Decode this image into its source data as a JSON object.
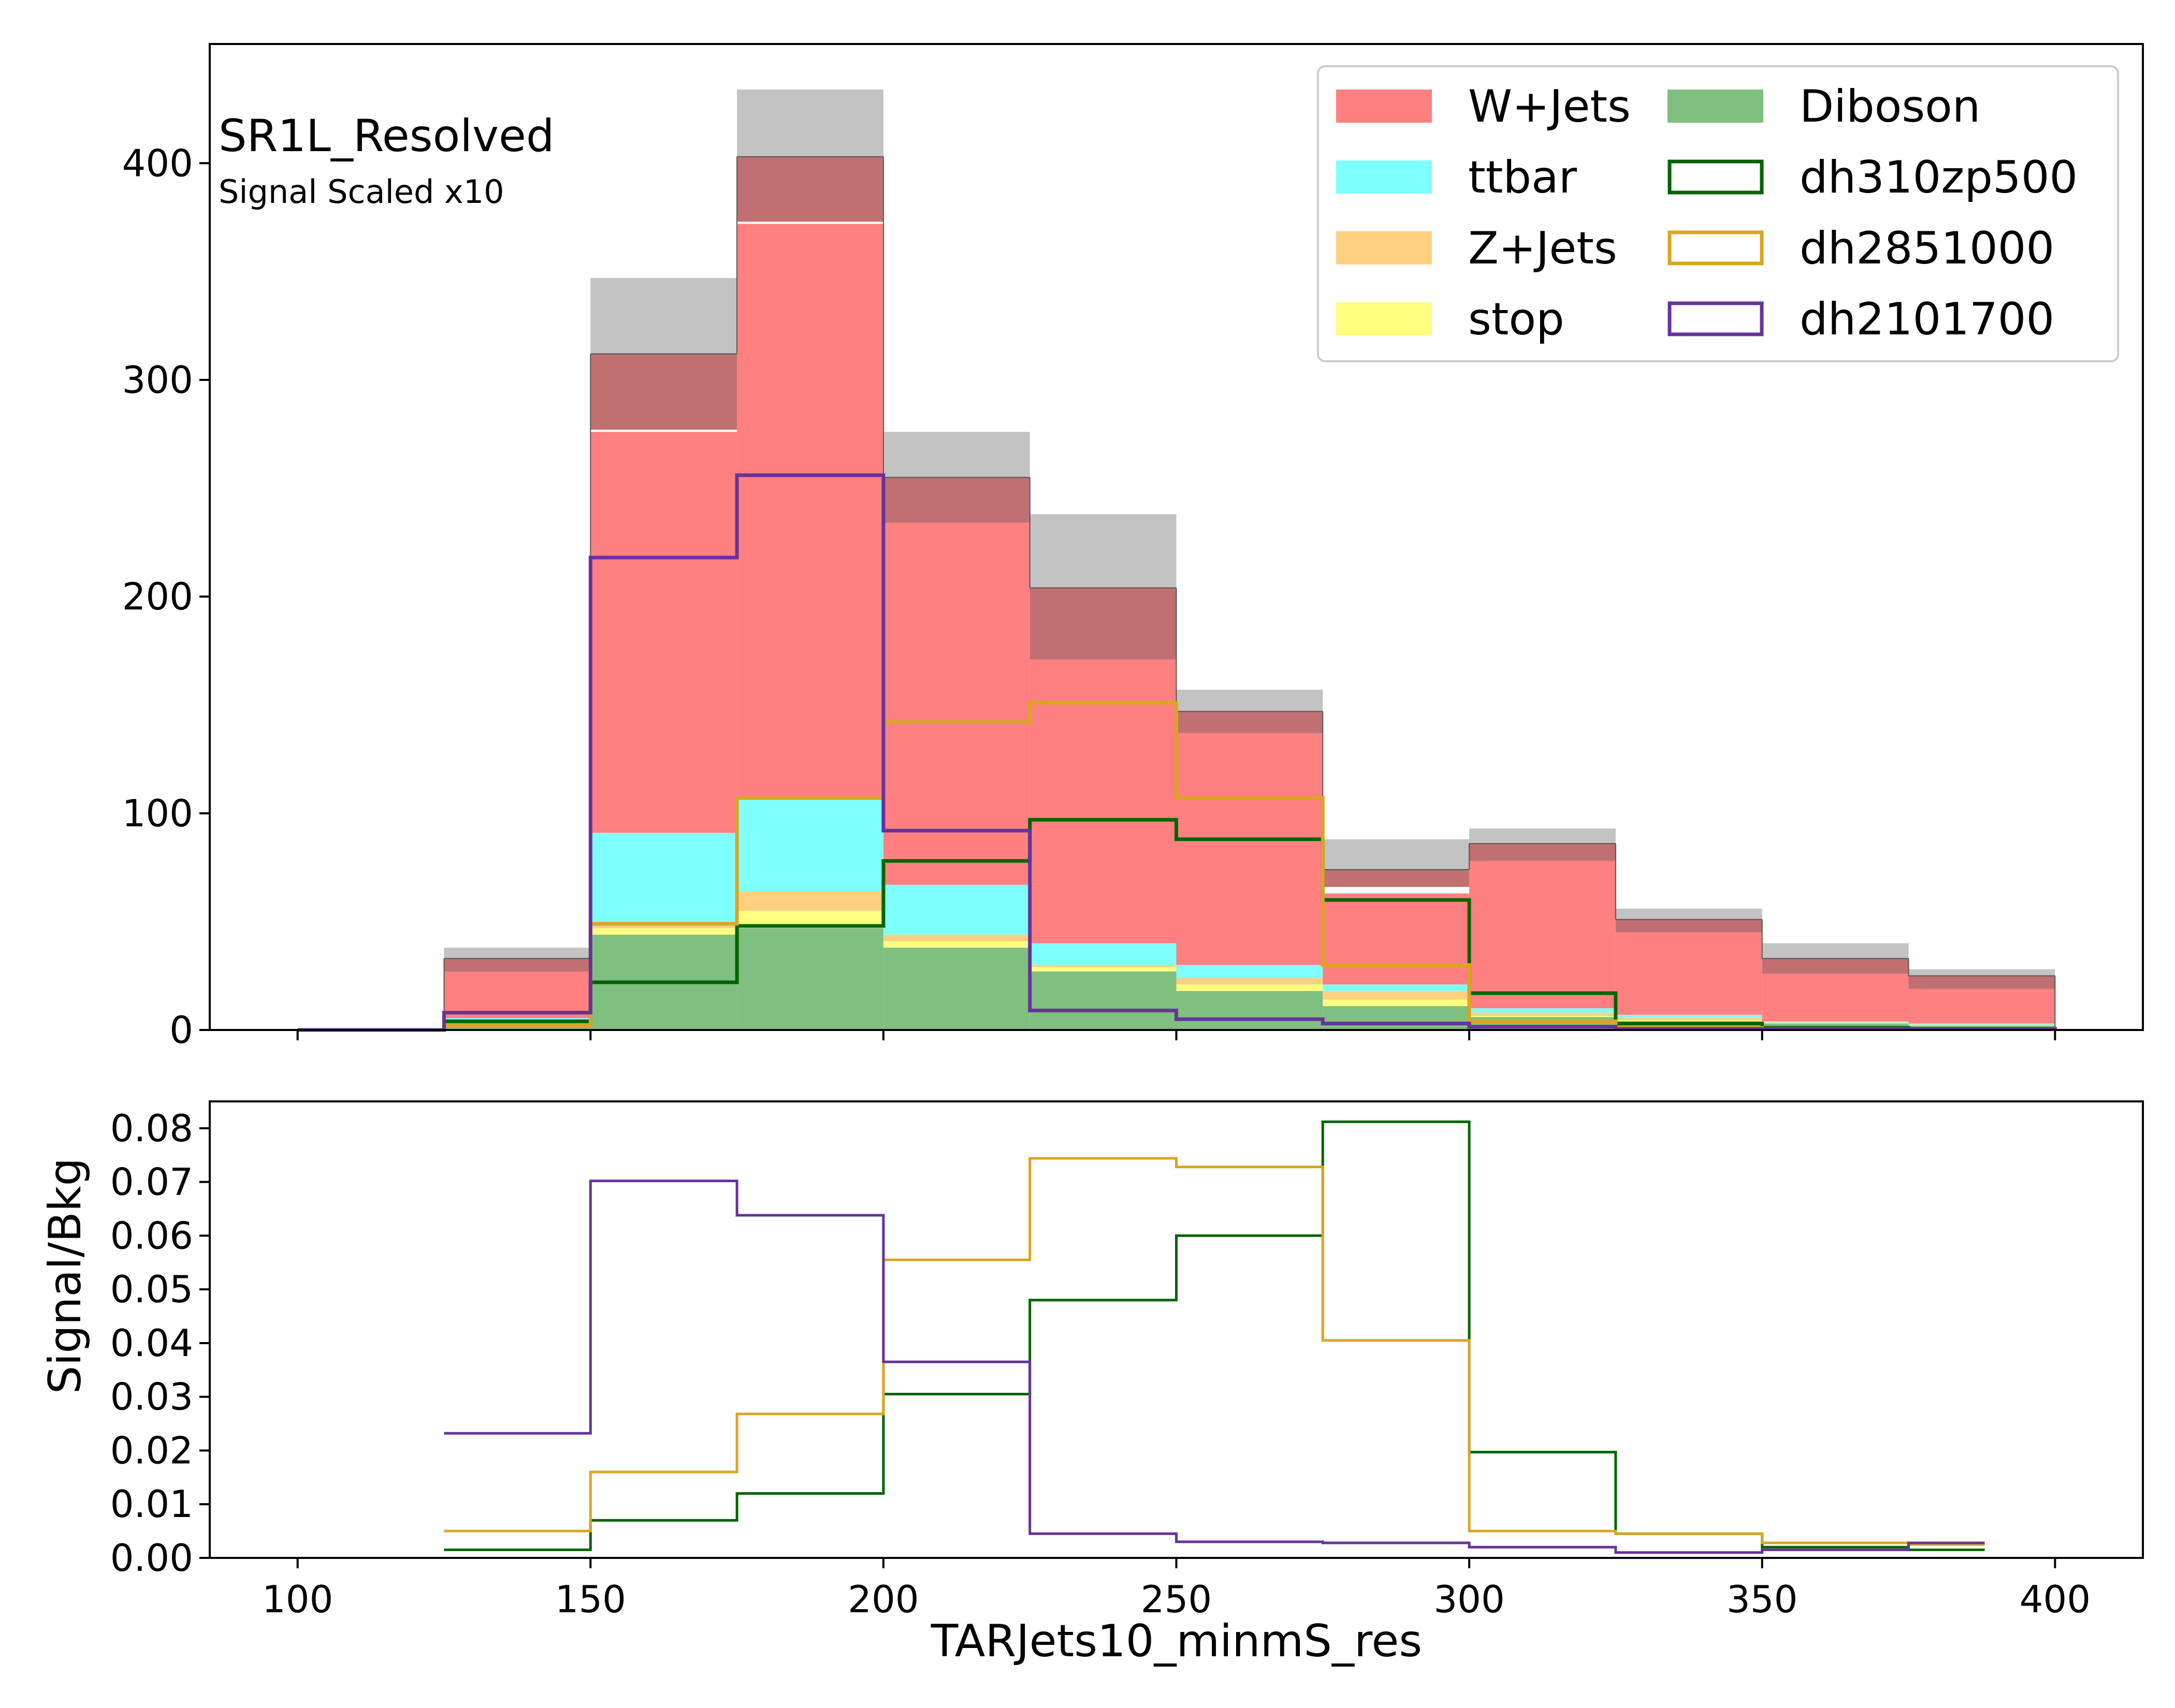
{
  "chart_data": [
    {
      "type": "bar",
      "stacked": true,
      "bin_edges": [
        100,
        125,
        150,
        175,
        200,
        225,
        250,
        275,
        300,
        325,
        350,
        375,
        400
      ],
      "xlim": [
        85,
        415
      ],
      "ylim": [
        0,
        455
      ],
      "yticks": [
        0,
        100,
        200,
        300,
        400
      ],
      "xlabel": "",
      "ylabel": "",
      "region_label": "SR1L_Resolved",
      "note": "Signal Scaled x10",
      "legend_position": "top-right",
      "series": [
        {
          "name": "Diboson",
          "color": "#7fbf7f",
          "values": [
            0,
            4,
            44,
            47,
            38,
            27,
            18,
            11,
            6,
            4,
            3,
            2
          ]
        },
        {
          "name": "stop",
          "color": "#ffff80",
          "values": [
            0,
            0.5,
            3,
            8,
            3,
            2,
            3,
            3,
            0.5,
            0.5,
            0.2,
            0.2
          ]
        },
        {
          "name": "Z+Jets",
          "color": "#ffd080",
          "values": [
            0,
            0.5,
            3,
            9,
            3,
            1,
            3,
            4,
            1.5,
            1,
            0.3,
            0.3
          ]
        },
        {
          "name": "ttbar",
          "color": "#80ffff",
          "values": [
            0,
            0.5,
            41,
            43,
            23,
            10,
            6,
            3,
            2,
            1.5,
            0.5,
            0.5
          ]
        },
        {
          "name": "W+Jets",
          "color": "#ff8080",
          "values": [
            0,
            23,
            185,
            265,
            167,
            131,
            107,
            42,
            68,
            38,
            22,
            17
          ]
        }
      ],
      "uncertainty_band": {
        "dark_color": "#c07070",
        "light_color": "#c0c0c0",
        "inner_low": [
          0,
          27,
          277,
          373,
          234,
          171,
          137,
          66,
          78,
          45,
          26,
          19
        ],
        "inner_high": [
          0,
          33,
          312,
          403,
          255,
          204,
          147,
          74,
          86,
          51,
          33,
          25
        ],
        "outer_high": [
          0,
          38,
          347,
          434,
          276,
          238,
          157,
          88,
          93,
          56,
          40,
          28
        ]
      },
      "signals": [
        {
          "name": "dh310zp500",
          "color": "#006400",
          "values": [
            0,
            4,
            22,
            48,
            78,
            97,
            88,
            60,
            17,
            3,
            1,
            0.5
          ]
        },
        {
          "name": "dh2851000",
          "color": "#daa520",
          "values": [
            0,
            2,
            49,
            107,
            142,
            151,
            107,
            30,
            4,
            1,
            0.5,
            0.5
          ]
        },
        {
          "name": "dh2101700",
          "color": "#663399",
          "values": [
            0,
            8,
            218,
            256,
            92,
            9,
            5,
            3,
            1.5,
            0.5,
            0.5,
            0.5
          ]
        }
      ]
    },
    {
      "type": "line",
      "step": true,
      "bin_edges": [
        125,
        150,
        175,
        200,
        225,
        250,
        275,
        300,
        325,
        350,
        375,
        388
      ],
      "xlim": [
        85,
        415
      ],
      "ylim": [
        0,
        0.085
      ],
      "xticks": [
        100,
        150,
        200,
        250,
        300,
        350,
        400
      ],
      "yticks": [
        "0.00",
        "0.01",
        "0.02",
        "0.03",
        "0.04",
        "0.05",
        "0.06",
        "0.07",
        "0.08"
      ],
      "xlabel": "TARJets10_minmS_res",
      "ylabel": "Signal/Bkg",
      "series": [
        {
          "name": "dh310zp500",
          "color": "#006400",
          "values": [
            0.0015,
            0.007,
            0.012,
            0.0305,
            0.048,
            0.06,
            0.0812,
            0.0197,
            0.0045,
            0.002,
            0.0015
          ]
        },
        {
          "name": "dh2851000",
          "color": "#daa520",
          "values": [
            0.005,
            0.016,
            0.0268,
            0.0555,
            0.0744,
            0.0728,
            0.0405,
            0.005,
            0.0045,
            0.0028,
            0.0025
          ]
        },
        {
          "name": "dh2101700",
          "color": "#663399",
          "values": [
            0.0232,
            0.0702,
            0.0638,
            0.0365,
            0.0045,
            0.003,
            0.0028,
            0.002,
            0.001,
            0.0015,
            0.0028
          ]
        }
      ]
    }
  ]
}
